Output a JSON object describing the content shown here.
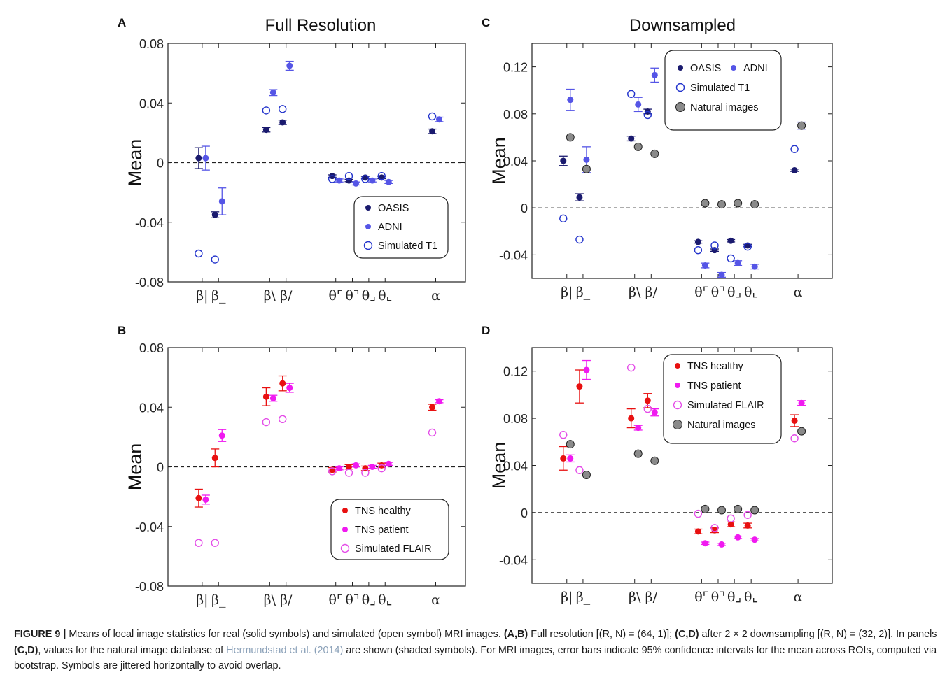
{
  "chart_data": [
    {
      "panel": "A",
      "title": "Full Resolution",
      "type": "scatter",
      "ylabel": "Mean",
      "ylim": [
        -0.08,
        0.08
      ],
      "yticks": [
        0.08,
        0.04,
        0,
        -0.04,
        -0.08
      ],
      "ytick_labels": [
        "0.08",
        "0.04",
        "0",
        "-0.04",
        "-0.08"
      ],
      "categories": [
        "β|",
        "β_",
        "β\\",
        "β/",
        "θ⌜",
        "θ⌝",
        "θ⌟",
        "θ⌞",
        "α"
      ],
      "legend": {
        "position": "bottom-right",
        "entries": [
          "OASIS",
          "ADNI",
          "Simulated T1"
        ]
      },
      "series": [
        {
          "name": "OASIS",
          "color": "#1a1a6e",
          "marker": "filled",
          "values": [
            0.003,
            -0.035,
            0.022,
            0.027,
            -0.009,
            -0.012,
            -0.01,
            -0.01,
            0.021
          ],
          "errors": [
            0.007,
            0.002,
            0.0015,
            0.0015,
            0.0008,
            0.0008,
            0.0008,
            0.0008,
            0.0015
          ]
        },
        {
          "name": "ADNI",
          "color": "#5555e6",
          "marker": "filled",
          "values": [
            0.003,
            -0.026,
            0.047,
            0.065,
            -0.012,
            -0.014,
            -0.012,
            -0.013,
            0.029
          ],
          "errors": [
            0.008,
            0.009,
            0.002,
            0.003,
            0.001,
            0.001,
            0.001,
            0.001,
            0.0015
          ]
        },
        {
          "name": "Simulated T1",
          "color": "#2233cc",
          "marker": "open",
          "values": [
            -0.061,
            -0.065,
            0.035,
            0.036,
            -0.011,
            -0.009,
            -0.011,
            -0.009,
            0.031
          ],
          "errors": null
        }
      ]
    },
    {
      "panel": "B",
      "title": "",
      "type": "scatter",
      "ylabel": "Mean",
      "ylim": [
        -0.08,
        0.08
      ],
      "yticks": [
        0.08,
        0.04,
        0,
        -0.04,
        -0.08
      ],
      "ytick_labels": [
        "0.08",
        "0.04",
        "0",
        "-0.04",
        "-0.08"
      ],
      "categories": [
        "β|",
        "β_",
        "β\\",
        "β/",
        "θ⌜",
        "θ⌝",
        "θ⌟",
        "θ⌞",
        "α"
      ],
      "legend": {
        "position": "bottom-right",
        "entries": [
          "TNS healthy",
          "TNS patient",
          "Simulated FLAIR"
        ]
      },
      "series": [
        {
          "name": "TNS healthy",
          "color": "#e81010",
          "marker": "filled",
          "values": [
            -0.021,
            0.006,
            0.047,
            0.056,
            -0.002,
            0.0,
            -0.001,
            0.001,
            0.04
          ],
          "errors": [
            0.006,
            0.006,
            0.006,
            0.005,
            0.0015,
            0.0015,
            0.0015,
            0.0015,
            0.002
          ]
        },
        {
          "name": "TNS patient",
          "color": "#f01af0",
          "marker": "filled",
          "values": [
            -0.022,
            0.021,
            0.046,
            0.053,
            -0.001,
            0.001,
            0.0,
            0.002,
            0.044
          ],
          "errors": [
            0.003,
            0.004,
            0.002,
            0.003,
            0.001,
            0.001,
            0.001,
            0.001,
            0.001
          ]
        },
        {
          "name": "Simulated FLAIR",
          "color": "#e44ce8",
          "marker": "open",
          "values": [
            -0.051,
            -0.051,
            0.03,
            0.032,
            -0.003,
            -0.004,
            -0.004,
            -0.001,
            0.023
          ],
          "errors": null
        }
      ]
    },
    {
      "panel": "C",
      "title": "Downsampled",
      "type": "scatter",
      "ylabel": "Mean",
      "ylim": [
        -0.06,
        0.14
      ],
      "yticks": [
        0.12,
        0.08,
        0.04,
        0,
        -0.04
      ],
      "ytick_labels": [
        "0.12",
        "0.08",
        "0.04",
        "0",
        "-0.04"
      ],
      "categories": [
        "β|",
        "β_",
        "β\\",
        "β/",
        "θ⌜",
        "θ⌝",
        "θ⌟",
        "θ⌞",
        "α"
      ],
      "legend": {
        "position": "top-right",
        "entries": [
          "OASIS",
          "ADNI",
          "Simulated T1",
          "Natural images"
        ]
      },
      "series": [
        {
          "name": "OASIS",
          "color": "#1a1a6e",
          "marker": "filled",
          "values": [
            0.04,
            0.009,
            0.059,
            0.082,
            -0.029,
            -0.036,
            -0.028,
            -0.032,
            0.032
          ],
          "errors": [
            0.004,
            0.003,
            0.002,
            0.002,
            0.001,
            0.001,
            0.001,
            0.001,
            0.001
          ]
        },
        {
          "name": "ADNI",
          "color": "#5555e6",
          "marker": "filled",
          "values": [
            0.092,
            0.041,
            0.088,
            0.113,
            -0.049,
            -0.057,
            -0.047,
            -0.05,
            0.07
          ],
          "errors": [
            0.009,
            0.011,
            0.006,
            0.006,
            0.002,
            0.002,
            0.002,
            0.002,
            0.003
          ]
        },
        {
          "name": "Simulated T1",
          "color": "#2233cc",
          "marker": "open",
          "values": [
            -0.009,
            -0.027,
            0.097,
            0.079,
            -0.036,
            -0.032,
            -0.043,
            -0.033,
            0.05
          ],
          "errors": null
        },
        {
          "name": "Natural images",
          "color": "#8a8a8a",
          "marker": "shaded",
          "values": [
            0.06,
            0.033,
            0.052,
            0.046,
            0.004,
            0.003,
            0.004,
            0.003,
            0.07
          ],
          "errors": null
        }
      ]
    },
    {
      "panel": "D",
      "title": "",
      "type": "scatter",
      "ylabel": "Mean",
      "ylim": [
        -0.06,
        0.14
      ],
      "yticks": [
        0.12,
        0.08,
        0.04,
        0,
        -0.04
      ],
      "ytick_labels": [
        "0.12",
        "0.08",
        "0.04",
        "0",
        "-0.04"
      ],
      "categories": [
        "β|",
        "β_",
        "β\\",
        "β/",
        "θ⌜",
        "θ⌝",
        "θ⌟",
        "θ⌞",
        "α"
      ],
      "legend": {
        "position": "top-right",
        "entries": [
          "TNS healthy",
          "TNS patient",
          "Simulated FLAIR",
          "Natural images"
        ]
      },
      "series": [
        {
          "name": "TNS healthy",
          "color": "#e81010",
          "marker": "filled",
          "values": [
            0.046,
            0.107,
            0.08,
            0.095,
            -0.016,
            -0.015,
            -0.01,
            -0.011,
            0.078
          ],
          "errors": [
            0.01,
            0.014,
            0.008,
            0.006,
            0.002,
            0.002,
            0.002,
            0.002,
            0.005
          ]
        },
        {
          "name": "TNS patient",
          "color": "#f01af0",
          "marker": "filled",
          "values": [
            0.046,
            0.121,
            0.072,
            0.085,
            -0.026,
            -0.027,
            -0.021,
            -0.023,
            0.093
          ],
          "errors": [
            0.003,
            0.008,
            0.002,
            0.003,
            0.001,
            0.001,
            0.001,
            0.001,
            0.002
          ]
        },
        {
          "name": "Simulated FLAIR",
          "color": "#e44ce8",
          "marker": "open",
          "values": [
            0.066,
            0.036,
            0.123,
            0.088,
            -0.001,
            -0.013,
            -0.005,
            -0.002,
            0.063
          ],
          "errors": null
        },
        {
          "name": "Natural images",
          "color": "#8a8a8a",
          "marker": "shaded",
          "values": [
            0.058,
            0.032,
            0.05,
            0.044,
            0.003,
            0.002,
            0.003,
            0.002,
            0.069
          ],
          "errors": null
        }
      ]
    }
  ],
  "caption": {
    "label": "FIGURE 9 |",
    "t1": " Means of local image statistics for real (solid symbols) and simulated (open symbol) MRI images. ",
    "b1": "(A,B)",
    "t2": " Full resolution [(R, N) = (64, 1)]; ",
    "b2": "(C,D)",
    "t3": " after 2 × 2 downsampling [(R, N) = (32, 2)]. In panels ",
    "b3": "(C,D)",
    "t4": ", values for the natural image database of ",
    "cite": "Hermundstad et al. (2014)",
    "t5": " are shown (shaded symbols). For MRI images, error bars indicate 95% confidence intervals for the mean across ROIs, computed via bootstrap. Symbols are jittered horizontally to avoid overlap."
  }
}
